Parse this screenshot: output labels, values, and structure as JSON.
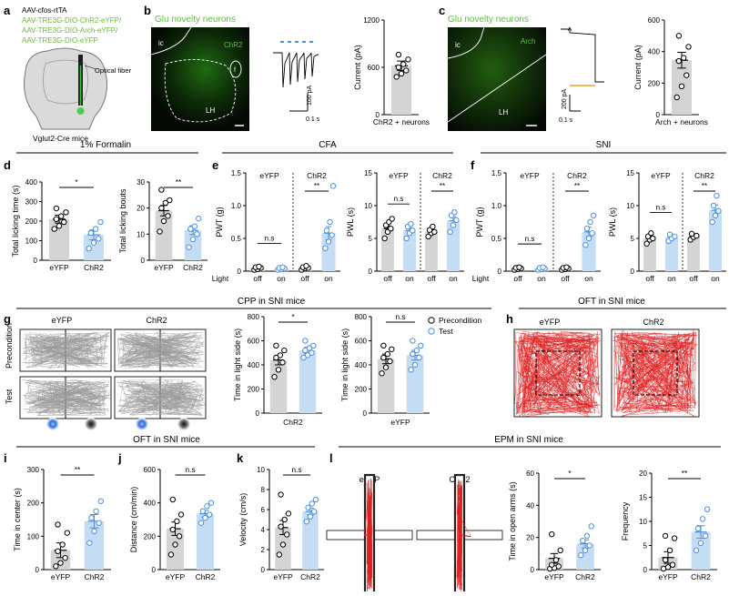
{
  "panels": {
    "a": "a",
    "b": "b",
    "c": "c",
    "d": "d",
    "e": "e",
    "f": "f",
    "g": "g",
    "h": "h",
    "i": "i",
    "j": "j",
    "k": "k",
    "l": "l"
  },
  "panel_a": {
    "virus_lines": [
      "AAV-cfos-rtTA",
      "AAV-TRE3G-DIO-ChR2-eYFP/",
      "AAV-TRE3G-DIO-Arch-eYFP/",
      "AAV-TRE3G-DIO-eYFP"
    ],
    "fiber_label": "Optical fiber",
    "mouse_label": "Vglut2-Cre mice"
  },
  "panel_b": {
    "title": "Glu novelty neurons",
    "region_ic": "ic",
    "region_chr2": "ChR2",
    "region_lh": "LH",
    "region_f": "f",
    "scale_y": "100 pA",
    "scale_x": "0.1 s"
  },
  "panel_c": {
    "title": "Glu novelty neurons",
    "region_ic": "ic",
    "region_arch": "Arch",
    "region_lh": "LH",
    "scale_y": "200 pA",
    "scale_x": "0.1 s"
  },
  "section_titles": {
    "formalin": "1% Formalin",
    "cfa": "CFA",
    "sni": "SNI",
    "cpp": "CPP in SNI mice",
    "oft_h": "OFT in SNI mice",
    "oft_ijk": "OFT in SNI mice",
    "epm": "EPM in SNI mice"
  },
  "colors": {
    "ctrl": "#d4d4d4",
    "chr2": "#c5dcf5",
    "blue": "#4a90e2",
    "black": "#000000",
    "green": "#7ec850",
    "red": "#e02020"
  },
  "legend_g": {
    "pre": "Precondition",
    "test": "Test"
  },
  "heat_g": {
    "cols": [
      "eYFP",
      "ChR2"
    ],
    "rows": [
      "Precondition",
      "Test"
    ]
  },
  "oft_h": {
    "cols": [
      "eYFP",
      "ChR2"
    ]
  },
  "epm_l": {
    "cols": [
      "eYFP",
      "ChR2"
    ]
  },
  "light_labels": {
    "light": "Light",
    "off": "off",
    "on": "on"
  },
  "chart_data": [
    {
      "id": "b_current",
      "type": "bar",
      "ylabel": "Current (pA)",
      "ylim": [
        0,
        1200
      ],
      "yticks": [
        0,
        600,
        1200
      ],
      "categories": [
        "ChR2 + neurons"
      ],
      "values": [
        620
      ],
      "sem": [
        60
      ],
      "points": [
        [
          480,
          520,
          560,
          600,
          640,
          700,
          760
        ]
      ]
    },
    {
      "id": "c_current",
      "type": "bar",
      "ylabel": "Current (pA)",
      "ylim": [
        0,
        600
      ],
      "yticks": [
        0,
        200,
        400,
        600
      ],
      "categories": [
        "Arch + neurons"
      ],
      "values": [
        345
      ],
      "sem": [
        50
      ],
      "points": [
        [
          110,
          180,
          250,
          340,
          360,
          430,
          500
        ]
      ]
    },
    {
      "id": "d_time",
      "type": "bar",
      "ylabel": "Total licking time (s)",
      "ylim": [
        0,
        400
      ],
      "yticks": [
        0,
        100,
        200,
        300,
        400
      ],
      "categories": [
        "eYFP",
        "ChR2"
      ],
      "values": [
        210,
        130
      ],
      "sem": [
        20,
        25
      ],
      "points": [
        [
          160,
          175,
          195,
          210,
          225,
          245,
          265
        ],
        [
          60,
          90,
          110,
          140,
          160,
          195
        ]
      ],
      "sig": "*"
    },
    {
      "id": "d_bouts",
      "type": "bar",
      "ylabel": "Total licking bouts",
      "ylim": [
        0,
        30
      ],
      "yticks": [
        0,
        10,
        20,
        30
      ],
      "categories": [
        "eYFP",
        "ChR2"
      ],
      "values": [
        19,
        11.5
      ],
      "sem": [
        2,
        1.7
      ],
      "points": [
        [
          11,
          15,
          17,
          20,
          22,
          23,
          27
        ],
        [
          5,
          8,
          10,
          12,
          13,
          16
        ]
      ],
      "sig": "**"
    },
    {
      "id": "e_pwt",
      "type": "bar",
      "ylabel": "PWT (g)",
      "ylim": [
        0,
        1.5
      ],
      "yticks": [
        0,
        0.5,
        1.0,
        1.5
      ],
      "groups": [
        "eYFP",
        "ChR2"
      ],
      "categories": [
        "off",
        "on",
        "off",
        "on"
      ],
      "values": [
        0.05,
        0.04,
        0.05,
        0.58
      ],
      "sem": [
        0.01,
        0.01,
        0.01,
        0.1
      ],
      "points": [
        [
          0.02,
          0.03,
          0.05,
          0.06,
          0.07
        ],
        [
          0.02,
          0.03,
          0.04,
          0.05,
          0.06
        ],
        [
          0.02,
          0.04,
          0.05,
          0.06,
          0.08
        ],
        [
          0.35,
          0.45,
          0.55,
          0.62,
          0.75,
          1.3
        ]
      ],
      "sig": [
        "n.s",
        "**"
      ]
    },
    {
      "id": "e_pwl",
      "type": "bar",
      "ylabel": "PWL (s)",
      "ylim": [
        0,
        15
      ],
      "yticks": [
        0,
        5,
        10,
        15
      ],
      "groups": [
        "eYFP",
        "ChR2"
      ],
      "categories": [
        "off",
        "on",
        "off",
        "on"
      ],
      "values": [
        6.5,
        6.2,
        6.0,
        7.7
      ],
      "sem": [
        0.4,
        0.4,
        0.3,
        0.6
      ],
      "points": [
        [
          5,
          6,
          6.5,
          7,
          7.5,
          8
        ],
        [
          5,
          5.8,
          6.2,
          6.8,
          7.2
        ],
        [
          5.3,
          5.8,
          6,
          6.3,
          6.8
        ],
        [
          6,
          7,
          7.8,
          8.5,
          9
        ]
      ],
      "sig": [
        "n.s",
        "**"
      ]
    },
    {
      "id": "f_pwt",
      "type": "bar",
      "ylabel": "PWT (g)",
      "ylim": [
        0,
        1.5
      ],
      "yticks": [
        0,
        0.5,
        1.0,
        1.5
      ],
      "groups": [
        "eYFP",
        "ChR2"
      ],
      "categories": [
        "off",
        "on",
        "off",
        "on"
      ],
      "values": [
        0.04,
        0.04,
        0.04,
        0.6
      ],
      "sem": [
        0.01,
        0.01,
        0.01,
        0.07
      ],
      "points": [
        [
          0.02,
          0.03,
          0.04,
          0.05,
          0.06
        ],
        [
          0.02,
          0.03,
          0.04,
          0.05,
          0.06
        ],
        [
          0.02,
          0.03,
          0.04,
          0.05,
          0.06
        ],
        [
          0.4,
          0.5,
          0.58,
          0.65,
          0.75,
          0.85
        ]
      ],
      "sig": [
        "n.s",
        "**"
      ]
    },
    {
      "id": "f_pwl",
      "type": "bar",
      "ylabel": "PWL (s)",
      "ylim": [
        0,
        15
      ],
      "yticks": [
        0,
        5,
        10,
        15
      ],
      "groups": [
        "eYFP",
        "ChR2"
      ],
      "categories": [
        "off",
        "on",
        "off",
        "on"
      ],
      "values": [
        5,
        5.2,
        5.3,
        9.3
      ],
      "sem": [
        0.3,
        0.3,
        0.2,
        0.8
      ],
      "points": [
        [
          4.2,
          4.8,
          5,
          5.3,
          5.8
        ],
        [
          4.6,
          5,
          5.3,
          5.6
        ],
        [
          4.8,
          5.2,
          5.4,
          5.7
        ],
        [
          7.5,
          8.5,
          9.2,
          10,
          11.5
        ]
      ],
      "sig": [
        "n.s",
        "**"
      ]
    },
    {
      "id": "g_chr2",
      "type": "bar",
      "ylabel": "Time in light side (s)",
      "ylim": [
        0,
        800
      ],
      "yticks": [
        0,
        200,
        400,
        600,
        800
      ],
      "xlabel": "ChR2",
      "categories": [
        "Precondition",
        "Test"
      ],
      "values": [
        440,
        520
      ],
      "sem": [
        40,
        25
      ],
      "points": [
        [
          300,
          360,
          420,
          460,
          480,
          520,
          560
        ],
        [
          460,
          480,
          500,
          520,
          540,
          560,
          600
        ]
      ],
      "sig": "*"
    },
    {
      "id": "g_eyfp",
      "type": "bar",
      "ylabel": "Time in light side (s)",
      "ylim": [
        0,
        800
      ],
      "yticks": [
        0,
        200,
        400,
        600,
        800
      ],
      "xlabel": "eYFP",
      "categories": [
        "Precondition",
        "Test"
      ],
      "values": [
        450,
        480
      ],
      "sem": [
        40,
        40
      ],
      "points": [
        [
          330,
          380,
          430,
          460,
          490,
          530,
          560
        ],
        [
          360,
          400,
          460,
          490,
          520,
          560,
          600
        ]
      ],
      "sig": "n.s"
    },
    {
      "id": "i_center",
      "type": "bar",
      "ylabel": "Time in center (s)",
      "ylim": [
        0,
        300
      ],
      "yticks": [
        0,
        100,
        200,
        300
      ],
      "categories": [
        "eYFP",
        "ChR2"
      ],
      "values": [
        58,
        145
      ],
      "sem": [
        22,
        20
      ],
      "points": [
        [
          10,
          20,
          35,
          55,
          75,
          110,
          135
        ],
        [
          80,
          115,
          140,
          155,
          175,
          205
        ]
      ],
      "sig": "**"
    },
    {
      "id": "j_distance",
      "type": "bar",
      "ylabel": "Distance (cm/min)",
      "ylim": [
        0,
        600
      ],
      "yticks": [
        0,
        200,
        400,
        600
      ],
      "categories": [
        "eYFP",
        "ChR2"
      ],
      "values": [
        245,
        335
      ],
      "sem": [
        40,
        20
      ],
      "points": [
        [
          90,
          150,
          200,
          240,
          290,
          330,
          420
        ],
        [
          280,
          310,
          330,
          350,
          380,
          400
        ]
      ],
      "sig": "n.s"
    },
    {
      "id": "k_velocity",
      "type": "bar",
      "ylabel": "Velocity (cm/s)",
      "ylim": [
        0,
        10
      ],
      "yticks": [
        0,
        2,
        4,
        6,
        8,
        10
      ],
      "categories": [
        "eYFP",
        "ChR2"
      ],
      "values": [
        4.2,
        5.8
      ],
      "sem": [
        0.7,
        0.35
      ],
      "points": [
        [
          1.5,
          2.5,
          3.5,
          4.3,
          5,
          5.6,
          7.5
        ],
        [
          4.8,
          5.3,
          5.8,
          6.2,
          6.6,
          7
        ]
      ],
      "sig": "n.s"
    },
    {
      "id": "l_time",
      "type": "bar",
      "ylabel": "Time in open arms (s)",
      "ylim": [
        0,
        60
      ],
      "yticks": [
        0,
        20,
        40,
        60
      ],
      "categories": [
        "eYFP",
        "ChR2"
      ],
      "values": [
        7,
        16
      ],
      "sem": [
        3,
        2.5
      ],
      "points": [
        [
          0.5,
          1,
          2,
          3,
          6,
          12,
          22
        ],
        [
          9,
          12,
          15,
          18,
          21,
          27
        ]
      ],
      "sig": "*"
    },
    {
      "id": "l_freq",
      "type": "bar",
      "ylabel": "Frequency",
      "ylim": [
        0,
        20
      ],
      "yticks": [
        0,
        5,
        10,
        15,
        20
      ],
      "categories": [
        "eYFP",
        "ChR2"
      ],
      "values": [
        2.5,
        7.8
      ],
      "sem": [
        1.2,
        1.3
      ],
      "points": [
        [
          0.2,
          0.5,
          1,
          2,
          4,
          6.5,
          7
        ],
        [
          4,
          5.5,
          7,
          8.5,
          10.5,
          12.5
        ]
      ],
      "sig": "**"
    }
  ]
}
